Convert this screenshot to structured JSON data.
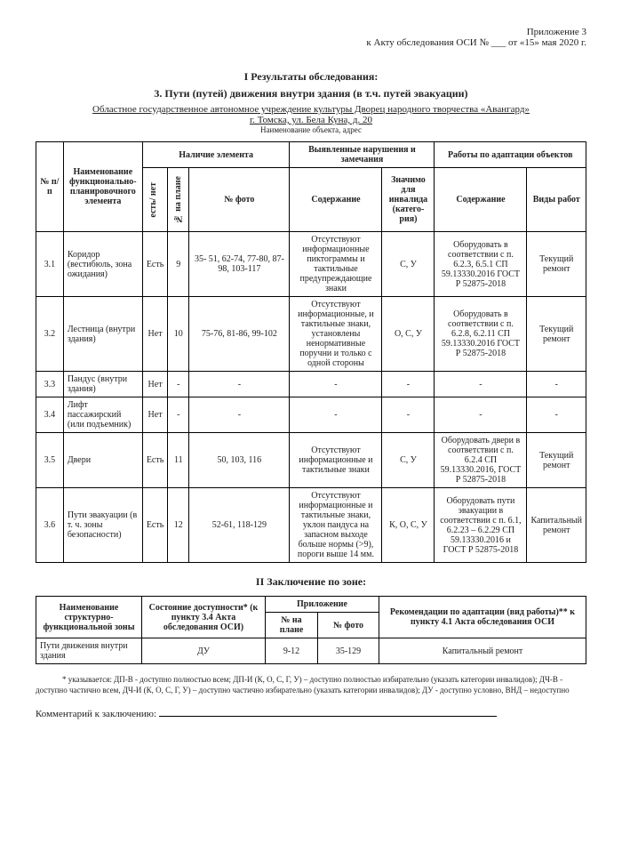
{
  "header": {
    "appendix": "Приложение 3",
    "act_ref": "к Акту обследования ОСИ № ___ от «15» мая 2020 г."
  },
  "titles": {
    "results": "I Результаты обследования:",
    "path": "3. Пути (путей) движения внутри здания (в т.ч. путей эвакуации)",
    "org": "Областное государственное автономное учреждение культуры Дворец народного творчества «Авангард»",
    "address": "г. Томска, ул. Бела Куна, д. 20",
    "address_caption": "Наименование объекта, адрес"
  },
  "table1": {
    "headers": {
      "num": "№ п/п",
      "element": "Наименование функционально-планировочного элемента",
      "presence": "Наличие элемента",
      "presence_sub1": "есть/ нет",
      "presence_sub2": "№ на плане",
      "presence_sub3": "№ фото",
      "violations": "Выявленные нарушения и замечания",
      "content": "Содержание",
      "significant": "Значимо для инвалида (катего-рия)",
      "adaptation": "Работы по адаптации объектов",
      "content2": "Содержание",
      "work_type": "Виды работ"
    },
    "rows": [
      {
        "num": "3.1",
        "element": "Коридор (вестибюль, зона ожидания)",
        "has": "Есть",
        "plan": "9",
        "photo": "35- 51, 62-74, 77-80, 87-98, 103-117",
        "violation": "Отсутствуют информационные пиктограммы и тактильные предупреждающие знаки",
        "category": "С, У",
        "adapt": "Оборудовать в соответствии с п. 6.2.3, 6.5.1 СП 59.13330.2016 ГОСТ Р 52875-2018",
        "work": "Текущий ремонт"
      },
      {
        "num": "3.2",
        "element": "Лестница (внутри здания)",
        "has": "Нет",
        "plan": "10",
        "photo": "75-76, 81-86, 99-102",
        "violation": "Отсутствуют информационные, и тактильные знаки, установлены ненормативные поручни и только с одной стороны",
        "category": "О, С, У",
        "adapt": "Оборудовать в соответствии с п. 6.2.8, 6.2.11 СП 59.13330.2016 ГОСТ Р 52875-2018",
        "work": "Текущий ремонт"
      },
      {
        "num": "3.3",
        "element": "Пандус (внутри здания)",
        "has": "Нет",
        "plan": "-",
        "photo": "-",
        "violation": "-",
        "category": "-",
        "adapt": "-",
        "work": "-"
      },
      {
        "num": "3.4",
        "element": "Лифт пассажирский (или подъемник)",
        "has": "Нет",
        "plan": "-",
        "photo": "-",
        "violation": "-",
        "category": "-",
        "adapt": "-",
        "work": "-"
      },
      {
        "num": "3.5",
        "element": "Двери",
        "has": "Есть",
        "plan": "11",
        "photo": "50, 103, 116",
        "violation": "Отсутствуют информационные и тактильные знаки",
        "category": "С, У",
        "adapt": "Оборудовать двери в соответствии с п. 6.2.4 СП 59.13330.2016, ГОСТ Р 52875-2018",
        "work": "Текущий ремонт"
      },
      {
        "num": "3.6",
        "element": "Пути эвакуации (в т. ч. зоны безопасности)",
        "has": "Есть",
        "plan": "12",
        "photo": "52-61, 118-129",
        "violation": "Отсутствуют информационные и тактильные знаки, уклон пандуса на запасном выходе больше нормы (>9), пороги выше 14 мм.",
        "category": "К, О, С, У",
        "adapt": "Оборудовать пути эвакуации в соответствии с п. 6.1, 6.2.23 – 6.2.29 СП 59.13330.2016 и ГОСТ Р 52875-2018",
        "work": "Капитальный ремонт"
      }
    ]
  },
  "zone_title": "II Заключение по зоне:",
  "table2": {
    "headers": {
      "zone_name": "Наименование структурно-функциональной зоны",
      "state": "Состояние доступности* (к пункту 3.4 Акта обследования ОСИ)",
      "appendix": "Приложение",
      "plan": "№ на плане",
      "photo": "№ фото",
      "recs": "Рекомендации по адаптации (вид работы)** к пункту 4.1 Акта обследования ОСИ"
    },
    "row": {
      "zone": "Пути движения внутри здания",
      "state": "ДУ",
      "plan": "9-12",
      "photo": "35-129",
      "recs": "Капитальный ремонт"
    }
  },
  "footnote": "* указывается: ДП-В - доступно полностью всем; ДП-И (К, О, С, Г, У) – доступно полностью избирательно (указать категории инвалидов); ДЧ-В - доступно частично всем, ДЧ-И (К, О, С, Г, У) – доступно частично избирательно (указать категории инвалидов); ДУ - доступно условно, ВНД – недоступно",
  "comment_label": "Комментарий к заключению:"
}
